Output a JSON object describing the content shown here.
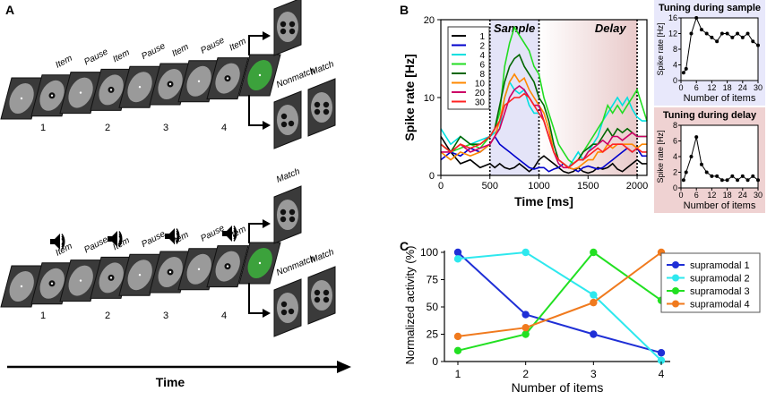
{
  "panel_a": {
    "letter": "A",
    "item_label": "Item",
    "pause_label": "Pause",
    "match_label": "Match",
    "nonmatch_label": "Nonmatch",
    "numbers": [
      "1",
      "2",
      "3",
      "4"
    ],
    "time_label": "Time"
  },
  "chart_data": [
    {
      "id": "B_main",
      "type": "line",
      "panel_letter": "B",
      "title": "",
      "xlabel": "Time [ms]",
      "ylabel": "Spike rate [Hz]",
      "xlim": [
        0,
        2100
      ],
      "ylim": [
        0,
        20
      ],
      "xticks": [
        "0",
        "500",
        "1000",
        "1500",
        "2000"
      ],
      "yticks": [
        "0",
        "10",
        "20"
      ],
      "x": [
        0,
        100,
        200,
        300,
        400,
        500,
        550,
        600,
        650,
        700,
        750,
        800,
        850,
        900,
        950,
        1000,
        1050,
        1100,
        1150,
        1200,
        1250,
        1300,
        1350,
        1400,
        1450,
        1500,
        1550,
        1600,
        1650,
        1700,
        1750,
        1800,
        1850,
        1900,
        1950,
        2000,
        2050,
        2100
      ],
      "annotations": {
        "sample": "Sample",
        "delay": "Delay"
      },
      "series": [
        {
          "name": "1",
          "color": "#000000",
          "values": [
            5,
            3,
            1.5,
            2,
            1,
            1.5,
            1,
            1.5,
            1,
            0.8,
            1,
            1.5,
            1,
            0.5,
            1,
            2,
            2.5,
            2,
            1.5,
            1,
            0.5,
            0.3,
            0.5,
            1,
            0.5,
            0.3,
            0.5,
            1,
            0.8,
            1,
            1.5,
            0.8,
            0.5,
            1,
            1.5,
            2,
            1.5,
            1.5
          ]
        },
        {
          "name": "2",
          "color": "#0000cc",
          "values": [
            2,
            3,
            2.5,
            3.5,
            3,
            4,
            5,
            4,
            3.5,
            3,
            2.5,
            2,
            1.5,
            1,
            0.8,
            1,
            1,
            0.5,
            0.8,
            1,
            1.5,
            1,
            0.8,
            0.5,
            1,
            1.2,
            1,
            0.8,
            1,
            1.5,
            2,
            2.5,
            3,
            3.5,
            3,
            3.5,
            2.5,
            2.5
          ]
        },
        {
          "name": "4",
          "color": "#00e0e0",
          "values": [
            6,
            4,
            5,
            4,
            4.5,
            5,
            5.5,
            6,
            10,
            12,
            11,
            10.5,
            11,
            9,
            8,
            8,
            7,
            5,
            3,
            2,
            1.5,
            1,
            2,
            3,
            2,
            3,
            4,
            5,
            7,
            8,
            9,
            10,
            9,
            10,
            8.5,
            7.5,
            7,
            7
          ]
        },
        {
          "name": "6",
          "color": "#22dd22",
          "values": [
            4,
            3,
            3.5,
            4,
            3.5,
            5,
            6,
            8,
            14,
            17,
            19,
            18,
            17,
            16,
            14,
            13,
            10,
            8,
            6,
            4,
            3,
            2,
            1.5,
            2,
            3,
            4,
            5,
            6,
            7,
            9,
            8,
            9,
            8,
            9,
            10,
            11,
            9,
            7
          ]
        },
        {
          "name": "8",
          "color": "#006600",
          "values": [
            4,
            3,
            5,
            4,
            4,
            5,
            6,
            9,
            12,
            14,
            15,
            15.5,
            14,
            13,
            12,
            10,
            9,
            7,
            4,
            2,
            1.5,
            1,
            1.5,
            2,
            3,
            3.5,
            4,
            4,
            5,
            6,
            5,
            6,
            5.5,
            6,
            5.5,
            5,
            5,
            5
          ]
        },
        {
          "name": "10",
          "color": "#ff8800",
          "values": [
            3,
            2,
            3,
            2.5,
            3,
            4,
            5,
            7,
            10,
            12,
            13,
            12,
            12.5,
            11,
            10,
            9,
            8,
            6,
            3,
            2,
            1.5,
            1,
            0.8,
            1,
            1.5,
            2,
            2,
            3,
            3,
            4,
            3.5,
            4,
            4,
            4,
            4,
            3.5,
            4,
            4
          ]
        },
        {
          "name": "20",
          "color": "#cc0066",
          "values": [
            3,
            3,
            4,
            3,
            3.5,
            4,
            5,
            6,
            8,
            10,
            11,
            11.5,
            11,
            10,
            9,
            9,
            7,
            5,
            3,
            1.5,
            1,
            1,
            1.5,
            2,
            2,
            3,
            3.5,
            4,
            4.5,
            4,
            5,
            5,
            4.5,
            5,
            5.5,
            5,
            5,
            5
          ]
        },
        {
          "name": "30",
          "color": "#ff2222",
          "values": [
            4,
            3,
            4,
            3.5,
            4,
            5,
            6,
            7,
            9,
            9.5,
            10,
            10,
            10.5,
            10,
            9,
            8,
            7,
            5,
            3,
            2,
            1.5,
            1,
            1.5,
            2,
            2,
            2.5,
            3,
            3.5,
            3,
            3.5,
            4,
            4,
            4,
            3.5,
            3,
            3.5,
            3,
            3
          ]
        }
      ]
    },
    {
      "id": "B_sample",
      "type": "line",
      "title": "Tuning during sample",
      "xlabel": "Number of items",
      "ylabel": "Spike rate [Hz]",
      "xlim": [
        0,
        30
      ],
      "ylim": [
        0,
        16
      ],
      "xticks": [
        "0",
        "6",
        "12",
        "18",
        "24",
        "30"
      ],
      "yticks": [
        "0",
        "4",
        "8",
        "12",
        "16"
      ],
      "x": [
        1,
        2,
        4,
        6,
        8,
        10,
        12,
        14,
        16,
        18,
        20,
        22,
        24,
        26,
        28,
        30
      ],
      "values": [
        2,
        3,
        12,
        16,
        13,
        12,
        11,
        10,
        12,
        12,
        11,
        12,
        11,
        12,
        10,
        9
      ]
    },
    {
      "id": "B_delay",
      "type": "line",
      "title": "Tuning during delay",
      "xlabel": "Number of items",
      "ylabel": "Spike rate [Hz]",
      "xlim": [
        0,
        30
      ],
      "ylim": [
        0,
        8
      ],
      "xticks": [
        "0",
        "6",
        "12",
        "18",
        "24",
        "30"
      ],
      "yticks": [
        "0",
        "2",
        "4",
        "6",
        "8"
      ],
      "x": [
        1,
        2,
        4,
        6,
        8,
        10,
        12,
        14,
        16,
        18,
        20,
        22,
        24,
        26,
        28,
        30
      ],
      "values": [
        1,
        2,
        4,
        6.5,
        3,
        2,
        1.5,
        1.5,
        1,
        1,
        1.5,
        1,
        1.5,
        1,
        1.5,
        1
      ]
    },
    {
      "id": "C",
      "type": "line",
      "panel_letter": "C",
      "title": "",
      "xlabel": "Number of items",
      "ylabel": "Normalized activity (%)",
      "categories": [
        "1",
        "2",
        "3",
        "4"
      ],
      "ylim": [
        0,
        100
      ],
      "yticks": [
        "0",
        "25",
        "50",
        "75",
        "100"
      ],
      "series": [
        {
          "name": "supramodal 1",
          "color": "#1f2fd6",
          "values": [
            100,
            43,
            25,
            8
          ]
        },
        {
          "name": "supramodal 2",
          "color": "#2ee8ee",
          "values": [
            94,
            100,
            61,
            1
          ]
        },
        {
          "name": "supramodal 3",
          "color": "#22e022",
          "values": [
            10,
            25,
            100,
            56
          ]
        },
        {
          "name": "supramodal 4",
          "color": "#f07a1e",
          "values": [
            23,
            31,
            54,
            100
          ]
        }
      ]
    }
  ]
}
